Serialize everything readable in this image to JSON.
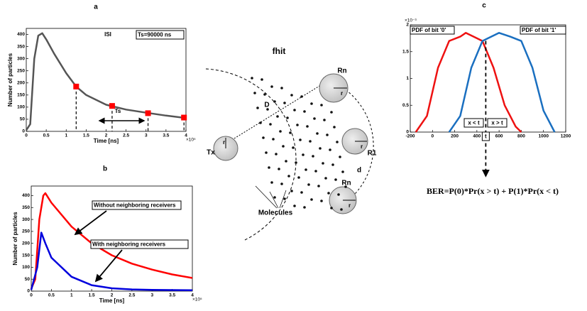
{
  "chart_data": [
    {
      "type": "line",
      "title": "a",
      "xlabel": "Time [ns]",
      "ylabel": "Number of particles",
      "x_multiplier": "×10⁵",
      "annotations": [
        "ISI",
        "Ts=90000 ns",
        "Ts"
      ],
      "series": [
        {
          "color": "#555555",
          "x": [
            0,
            10000,
            20000,
            30000,
            40000,
            50000,
            70000,
            100000,
            125000,
            150000,
            200000,
            250000,
            300000,
            350000,
            400000
          ],
          "values": [
            5,
            30,
            300,
            395,
            405,
            380,
            320,
            240,
            185,
            150,
            110,
            90,
            77,
            65,
            55
          ]
        }
      ],
      "markers": {
        "color": "#ff0000",
        "x": [
          125000,
          215000,
          305000,
          395000
        ],
        "values": [
          185,
          105,
          75,
          57
        ]
      },
      "xlim": [
        0,
        400000
      ],
      "xticks": [
        0,
        {
          "value": 50000,
          "label": "0.5"
        },
        {
          "value": 100000,
          "label": "1"
        },
        {
          "value": 150000,
          "label": "1.5"
        },
        {
          "value": 200000,
          "label": "2"
        },
        {
          "value": 250000,
          "label": "2.5"
        },
        {
          "value": 300000,
          "label": "3"
        },
        {
          "value": 350000,
          "label": "3.5"
        },
        {
          "value": 400000,
          "label": "4"
        }
      ],
      "ylim": [
        0,
        425
      ],
      "yticks": [
        0,
        50,
        100,
        150,
        200,
        250,
        300,
        350,
        400
      ]
    },
    {
      "type": "line",
      "title": "b",
      "xlabel": "Time [ns]",
      "ylabel": "Number of particles",
      "x_multiplier": "×10⁵",
      "series": [
        {
          "name": "Without neighboring receivers",
          "color": "#ff0000",
          "x": [
            0,
            10000,
            20000,
            30000,
            35000,
            50000,
            100000,
            150000,
            200000,
            250000,
            300000,
            350000,
            400000
          ],
          "values": [
            10,
            50,
            300,
            400,
            410,
            370,
            270,
            200,
            150,
            115,
            90,
            70,
            55
          ]
        },
        {
          "name": "With neighboring receivers",
          "color": "#0000dd",
          "x": [
            0,
            15000,
            25000,
            35000,
            50000,
            100000,
            150000,
            200000,
            250000,
            300000,
            400000
          ],
          "values": [
            5,
            100,
            245,
            200,
            140,
            60,
            25,
            12,
            7,
            5,
            4
          ]
        }
      ],
      "xlim": [
        0,
        400000
      ],
      "xticks": [
        0,
        {
          "value": 50000,
          "label": "0.5"
        },
        {
          "value": 100000,
          "label": "1"
        },
        {
          "value": 150000,
          "label": "1.5"
        },
        {
          "value": 200000,
          "label": "2"
        },
        {
          "value": 250000,
          "label": "2.5"
        },
        {
          "value": 300000,
          "label": "3"
        },
        {
          "value": 350000,
          "label": "3.5"
        },
        {
          "value": 400000,
          "label": "4"
        }
      ],
      "ylim": [
        0,
        440
      ],
      "yticks": [
        0,
        50,
        100,
        150,
        200,
        250,
        300,
        350,
        400
      ]
    },
    {
      "type": "line",
      "title": "c",
      "y_multiplier": "×10⁻³",
      "annotations": [
        "x < t",
        "x > t",
        "t"
      ],
      "threshold": 480,
      "formula": "BER=P(0)*Pr(x > t) + P(1)*Pr(x < t)",
      "series": [
        {
          "name": "PDF of bit '0'",
          "color": "#ee1111",
          "x": [
            -150,
            -50,
            50,
            150,
            250,
            300,
            400,
            450,
            550,
            650,
            750,
            800
          ],
          "values": [
            0,
            0.0003,
            0.0012,
            0.0017,
            0.00178,
            0.00185,
            0.00175,
            0.0017,
            0.0012,
            0.0005,
            0.0001,
            0
          ]
        },
        {
          "name": "PDF of bit '1'",
          "color": "#1a6fc0",
          "x": [
            150,
            250,
            350,
            450,
            500,
            600,
            700,
            800,
            900,
            1000,
            1100
          ],
          "values": [
            0,
            0.0003,
            0.0012,
            0.0017,
            0.00175,
            0.00185,
            0.00178,
            0.0017,
            0.0012,
            0.0004,
            0
          ]
        }
      ],
      "xlim": [
        -200,
        1200
      ],
      "xticks": [
        -200,
        0,
        200,
        400,
        600,
        800,
        1000,
        1200
      ],
      "ylim": [
        0,
        0.002
      ],
      "yticks": [
        0,
        {
          "value": 0.0005,
          "label": "0.5"
        },
        {
          "value": 0.001,
          "label": "1"
        },
        {
          "value": 0.0015,
          "label": "1.5"
        },
        {
          "value": 0.002,
          "label": "2"
        }
      ]
    }
  ],
  "diagram": {
    "title": "fhit",
    "tx": "Tx",
    "rn": "Rn",
    "r1": "R1",
    "distance": "D",
    "gap": "d",
    "radius": "r",
    "molecules": "Molecules"
  }
}
